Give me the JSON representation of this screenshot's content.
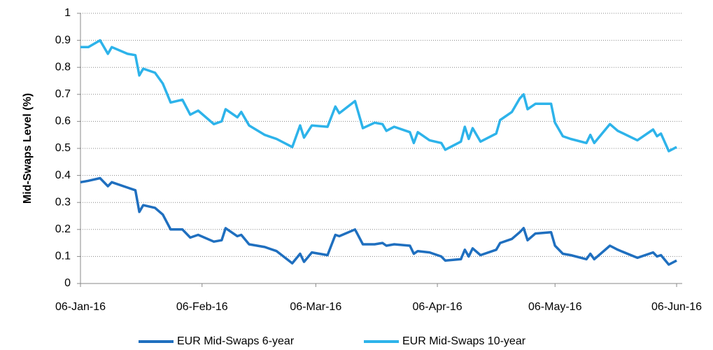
{
  "chart_data": {
    "type": "line",
    "y_label": "Mid-Swaps Level (%)",
    "x": [
      "2016-01-06",
      "2016-01-08",
      "2016-01-11",
      "2016-01-13",
      "2016-01-14",
      "2016-01-18",
      "2016-01-20",
      "2016-01-21",
      "2016-01-22",
      "2016-01-25",
      "2016-01-27",
      "2016-01-29",
      "2016-02-01",
      "2016-02-03",
      "2016-02-05",
      "2016-02-09",
      "2016-02-11",
      "2016-02-12",
      "2016-02-15",
      "2016-02-16",
      "2016-02-18",
      "2016-02-22",
      "2016-02-25",
      "2016-02-29",
      "2016-03-02",
      "2016-03-03",
      "2016-03-05",
      "2016-03-09",
      "2016-03-11",
      "2016-03-12",
      "2016-03-16",
      "2016-03-18",
      "2016-03-21",
      "2016-03-23",
      "2016-03-24",
      "2016-03-26",
      "2016-03-30",
      "2016-03-31",
      "2016-04-01",
      "2016-04-04",
      "2016-04-07",
      "2016-04-08",
      "2016-04-12",
      "2016-04-13",
      "2016-04-14",
      "2016-04-15",
      "2016-04-17",
      "2016-04-21",
      "2016-04-22",
      "2016-04-25",
      "2016-04-27",
      "2016-04-28",
      "2016-04-29",
      "2016-05-01",
      "2016-05-05",
      "2016-05-06",
      "2016-05-08",
      "2016-05-10",
      "2016-05-14",
      "2016-05-15",
      "2016-05-16",
      "2016-05-20",
      "2016-05-22",
      "2016-05-27",
      "2016-05-31",
      "2016-06-01",
      "2016-06-02",
      "2016-06-04",
      "2016-06-06"
    ],
    "series": [
      {
        "name": "EUR Mid-Swaps 6-year",
        "color": "#1f6fbf",
        "values": [
          0.375,
          0.38,
          0.39,
          0.36,
          0.375,
          0.355,
          0.345,
          0.265,
          0.29,
          0.28,
          0.255,
          0.2,
          0.2,
          0.17,
          0.18,
          0.155,
          0.16,
          0.205,
          0.175,
          0.18,
          0.145,
          0.135,
          0.12,
          0.075,
          0.11,
          0.08,
          0.115,
          0.105,
          0.18,
          0.175,
          0.2,
          0.145,
          0.145,
          0.15,
          0.14,
          0.145,
          0.14,
          0.11,
          0.12,
          0.115,
          0.1,
          0.085,
          0.09,
          0.125,
          0.1,
          0.13,
          0.105,
          0.125,
          0.15,
          0.165,
          0.19,
          0.205,
          0.16,
          0.185,
          0.19,
          0.14,
          0.11,
          0.105,
          0.09,
          0.11,
          0.09,
          0.14,
          0.125,
          0.095,
          0.115,
          0.1,
          0.105,
          0.07,
          0.085
        ]
      },
      {
        "name": "EUR Mid-Swaps 10-year",
        "color": "#2db3ea",
        "values": [
          0.875,
          0.875,
          0.9,
          0.85,
          0.875,
          0.85,
          0.845,
          0.77,
          0.795,
          0.78,
          0.74,
          0.67,
          0.68,
          0.625,
          0.64,
          0.59,
          0.6,
          0.645,
          0.615,
          0.635,
          0.585,
          0.55,
          0.535,
          0.505,
          0.585,
          0.54,
          0.585,
          0.58,
          0.655,
          0.63,
          0.675,
          0.575,
          0.595,
          0.59,
          0.565,
          0.58,
          0.56,
          0.52,
          0.56,
          0.53,
          0.52,
          0.495,
          0.525,
          0.58,
          0.535,
          0.575,
          0.525,
          0.555,
          0.605,
          0.635,
          0.685,
          0.7,
          0.645,
          0.665,
          0.665,
          0.595,
          0.545,
          0.535,
          0.52,
          0.55,
          0.52,
          0.59,
          0.565,
          0.53,
          0.57,
          0.545,
          0.555,
          0.49,
          0.505
        ]
      }
    ],
    "xlim": [
      "2016-01-06",
      "2016-06-06"
    ],
    "xticks": [
      {
        "value": "2016-01-06",
        "label": "06-Jan-16"
      },
      {
        "value": "2016-02-06",
        "label": "06-Feb-16"
      },
      {
        "value": "2016-03-06",
        "label": "06-Mar-16"
      },
      {
        "value": "2016-04-06",
        "label": "06-Apr-16"
      },
      {
        "value": "2016-05-06",
        "label": "06-May-16"
      },
      {
        "value": "2016-06-06",
        "label": "06-Jun-16"
      }
    ],
    "ylim": [
      0,
      1
    ],
    "yticks": [
      0,
      0.1,
      0.2,
      0.3,
      0.4,
      0.5,
      0.6,
      0.7,
      0.8,
      0.9,
      1
    ],
    "grid": true,
    "legend": "bottom"
  }
}
